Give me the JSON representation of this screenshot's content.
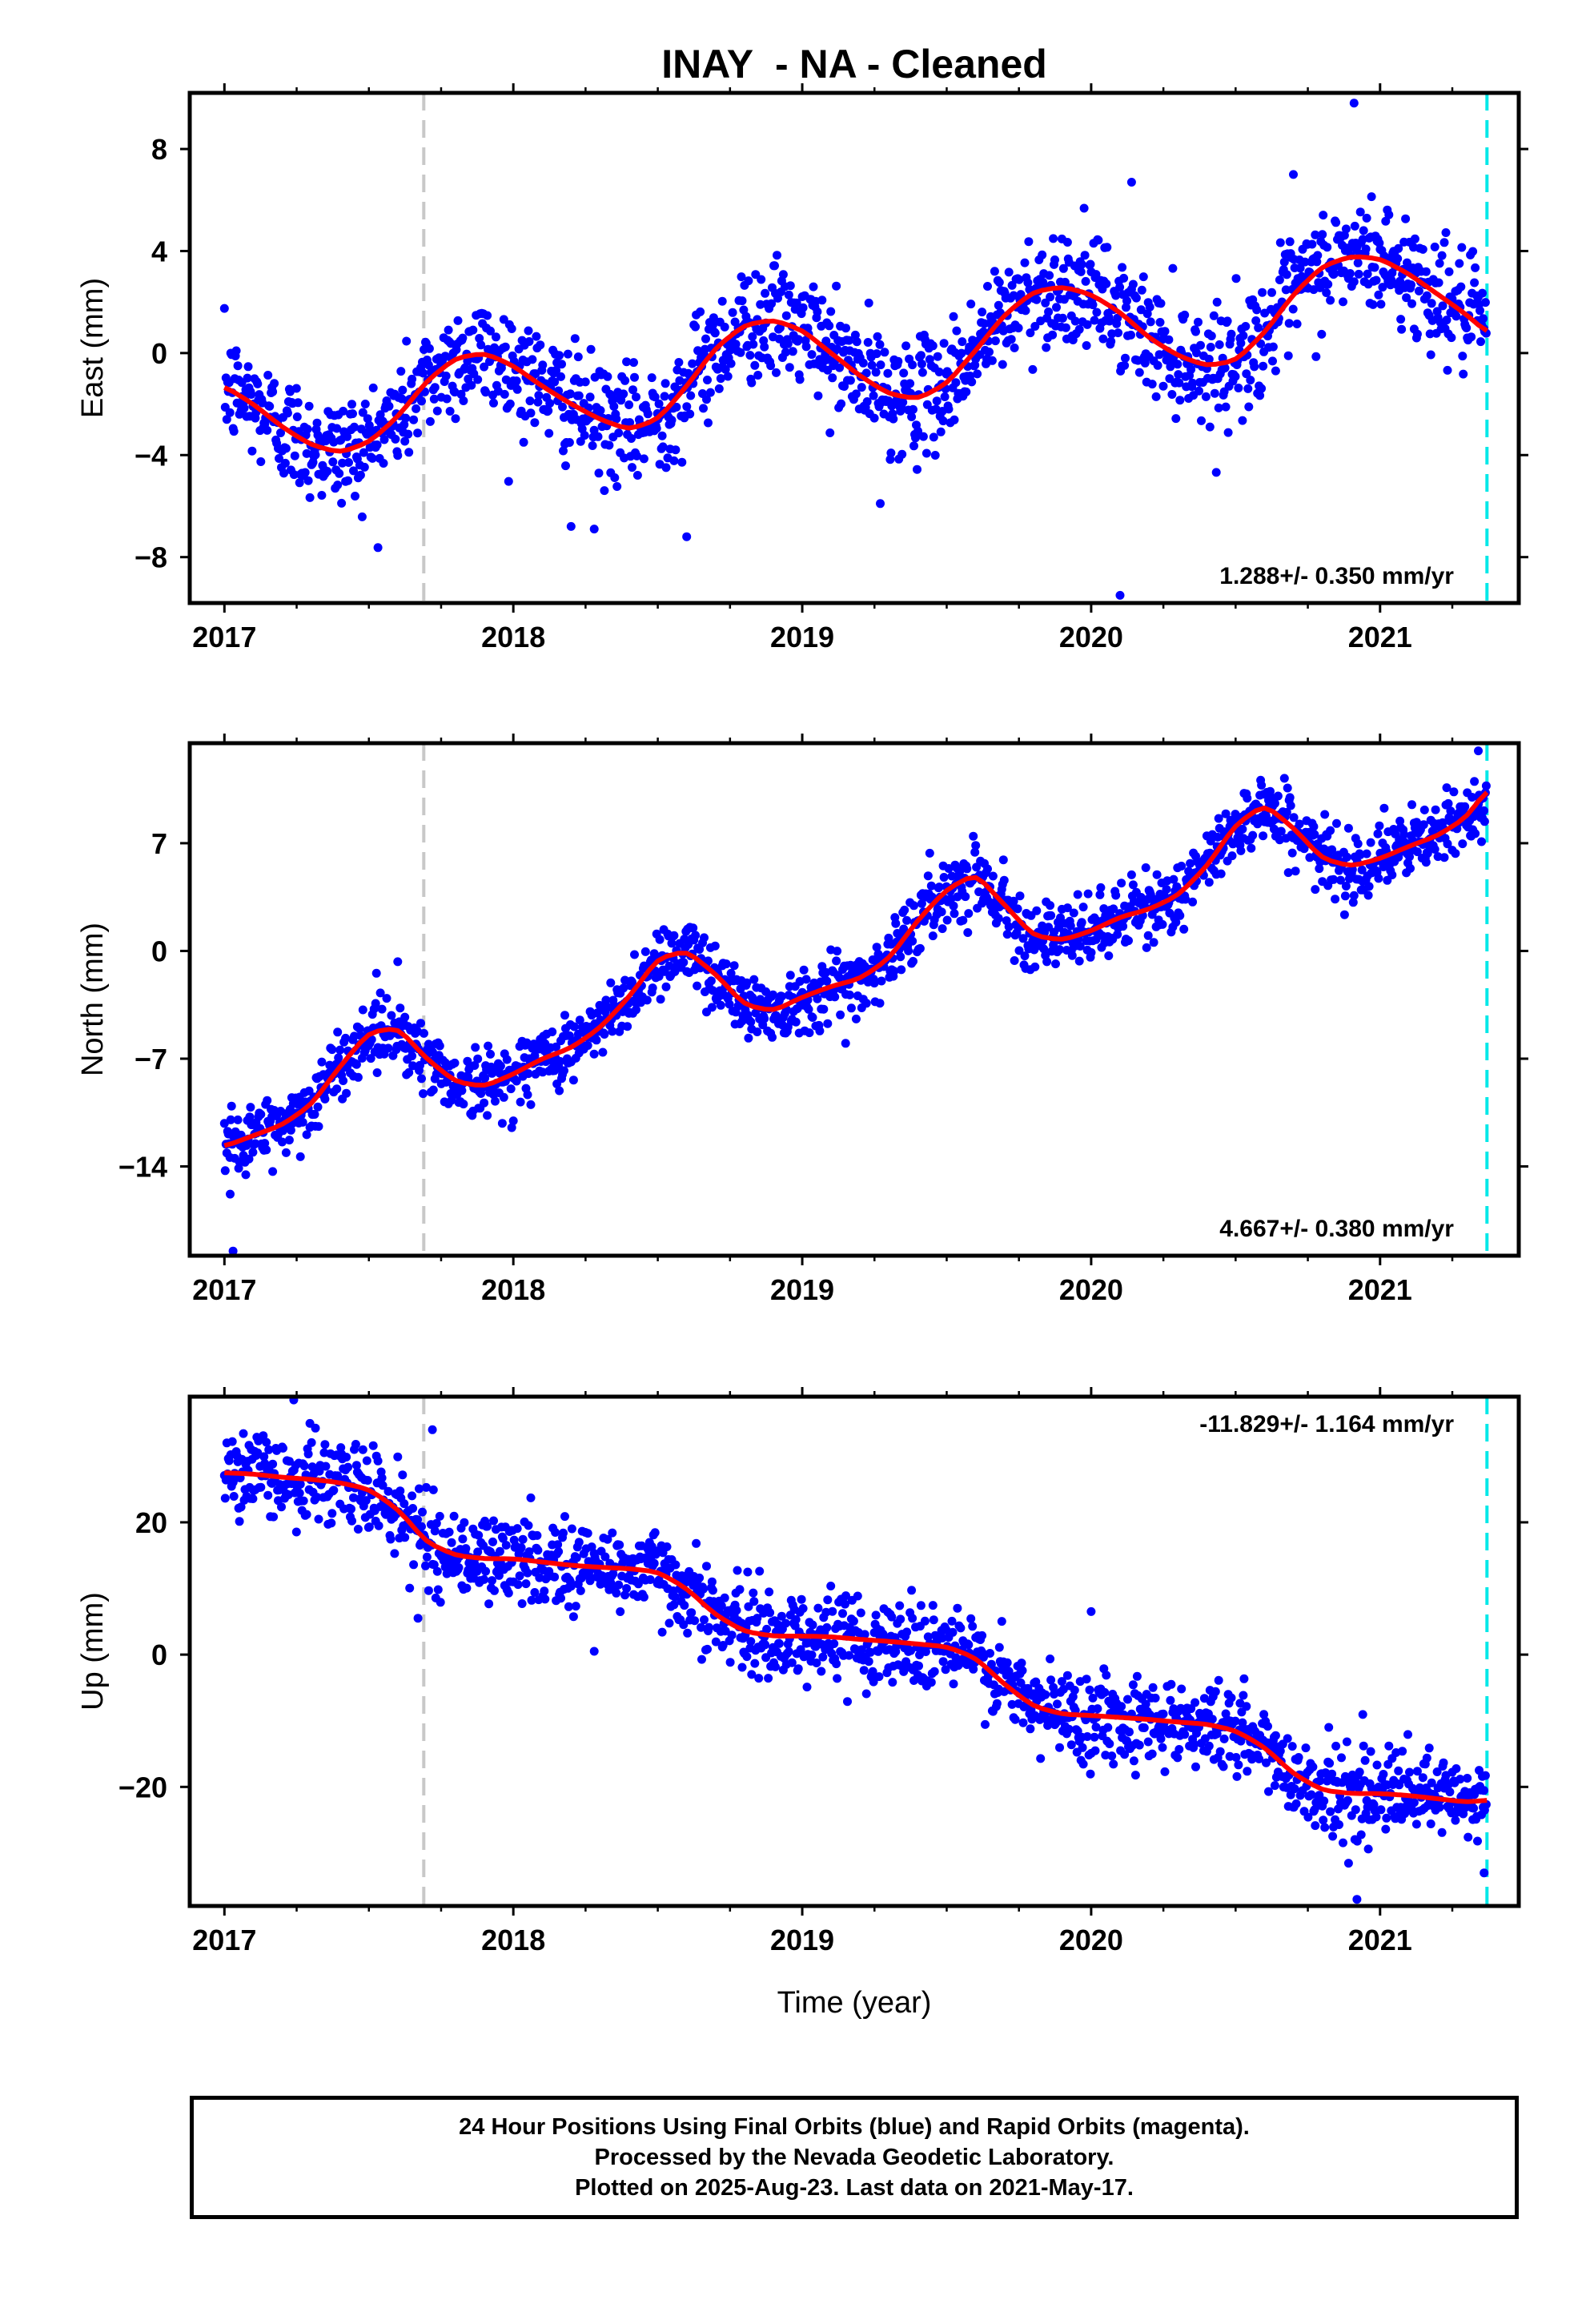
{
  "footer": {
    "line1": "24 Hour Positions Using Final Orbits (blue) and Rapid Orbits (magenta).",
    "line2": "Processed by the Nevada Geodetic Laboratory.",
    "line3": "Plotted on 2025-Aug-23. Last data on 2021-May-17."
  },
  "colors": {
    "points": "#0000ff",
    "fit": "#ff0000",
    "antenna_change_line": "#c8c8c8",
    "last_data_line": "#00e8e8"
  },
  "chart_data": [
    {
      "type": "scatter",
      "title": "INAY  - NA - Cleaned",
      "xlabel": "",
      "ylabel": "East (mm)",
      "xlim": [
        2016.88,
        2021.48
      ],
      "ylim": [
        -9.8,
        10.2
      ],
      "xticks": [
        2017,
        2018,
        2019,
        2020,
        2021
      ],
      "yticks": [
        8,
        4,
        0,
        -4,
        -8
      ],
      "rate_label": "1.288+/- 0.350 mm/yr",
      "rate_position": "bottom-right",
      "vertical_lines": [
        {
          "x": 2017.69,
          "style": "dashed",
          "color": "gray"
        },
        {
          "x": 2021.37,
          "style": "dashed",
          "color": "cyan"
        }
      ],
      "fit_curve": {
        "x": [
          2017.0,
          2017.1,
          2017.2,
          2017.3,
          2017.4,
          2017.5,
          2017.6,
          2017.7,
          2017.8,
          2017.9,
          2018.0,
          2018.1,
          2018.2,
          2018.3,
          2018.4,
          2018.5,
          2018.6,
          2018.7,
          2018.8,
          2018.9,
          2019.0,
          2019.1,
          2019.2,
          2019.3,
          2019.4,
          2019.5,
          2019.6,
          2019.7,
          2019.8,
          2019.9,
          2020.0,
          2020.1,
          2020.2,
          2020.3,
          2020.4,
          2020.5,
          2020.6,
          2020.7,
          2020.8,
          2020.9,
          2021.0,
          2021.1,
          2021.2,
          2021.3,
          2021.37
        ],
        "y": [
          -1.3,
          -2.0,
          -2.9,
          -3.6,
          -3.9,
          -3.5,
          -2.5,
          -1.1,
          -0.2,
          0.0,
          -0.5,
          -1.3,
          -2.0,
          -2.6,
          -3.0,
          -2.6,
          -1.3,
          0.2,
          1.1,
          1.3,
          0.9,
          0.0,
          -0.9,
          -1.6,
          -1.8,
          -1.2,
          0.1,
          1.5,
          2.4,
          2.6,
          2.3,
          1.6,
          0.6,
          -0.1,
          -0.5,
          -0.3,
          0.8,
          2.3,
          3.4,
          3.8,
          3.7,
          3.1,
          2.3,
          1.5,
          0.8
        ]
      },
      "points_summary": {
        "x_start": 2017.0,
        "x_end": 2021.37,
        "spacing_years": 0.00274,
        "scatter_sd_mm": 1.1,
        "outliers": [
          {
            "x": 2020.91,
            "y": 9.8
          },
          {
            "x": 2020.1,
            "y": -9.5
          },
          {
            "x": 2018.6,
            "y": -7.2
          },
          {
            "x": 2018.2,
            "y": -6.8
          },
          {
            "x": 2018.28,
            "y": -6.9
          },
          {
            "x": 2019.27,
            "y": -5.9
          },
          {
            "x": 2020.14,
            "y": 6.7
          },
          {
            "x": 2020.7,
            "y": 7.0
          }
        ]
      }
    },
    {
      "type": "scatter",
      "title": "",
      "xlabel": "",
      "ylabel": "North (mm)",
      "xlim": [
        2016.88,
        2021.48
      ],
      "ylim": [
        -19.8,
        13.5
      ],
      "xticks": [
        2017,
        2018,
        2019,
        2020,
        2021
      ],
      "yticks": [
        7,
        0,
        -7,
        -14
      ],
      "rate_label": "4.667+/- 0.380 mm/yr",
      "rate_position": "bottom-right",
      "vertical_lines": [
        {
          "x": 2017.69,
          "style": "dashed",
          "color": "gray"
        },
        {
          "x": 2021.37,
          "style": "dashed",
          "color": "cyan"
        }
      ],
      "fit_curve": {
        "x": [
          2017.0,
          2017.1,
          2017.2,
          2017.3,
          2017.4,
          2017.5,
          2017.6,
          2017.7,
          2017.8,
          2017.9,
          2018.0,
          2018.1,
          2018.2,
          2018.3,
          2018.4,
          2018.5,
          2018.6,
          2018.7,
          2018.8,
          2018.9,
          2019.0,
          2019.1,
          2019.2,
          2019.3,
          2019.4,
          2019.5,
          2019.6,
          2019.7,
          2019.8,
          2019.9,
          2020.0,
          2020.1,
          2020.2,
          2020.3,
          2020.4,
          2020.5,
          2020.6,
          2020.7,
          2020.8,
          2020.9,
          2021.0,
          2021.1,
          2021.2,
          2021.3,
          2021.37
        ],
        "y": [
          -12.7,
          -12.0,
          -11.3,
          -10.0,
          -7.5,
          -5.3,
          -5.0,
          -7.0,
          -8.5,
          -8.8,
          -8.0,
          -7.0,
          -6.3,
          -5.0,
          -3.0,
          -0.5,
          0.0,
          -1.5,
          -3.5,
          -3.9,
          -3.0,
          -2.3,
          -1.8,
          -0.5,
          2.0,
          4.0,
          5.0,
          3.0,
          1.0,
          0.7,
          1.3,
          2.2,
          2.7,
          3.6,
          5.5,
          8.2,
          9.5,
          8.0,
          6.0,
          5.5,
          6.0,
          6.8,
          7.5,
          8.7,
          10.5
        ]
      },
      "points_summary": {
        "x_start": 2017.0,
        "x_end": 2021.37,
        "spacing_years": 0.00274,
        "scatter_sd_mm": 1.1,
        "outliers": [
          {
            "x": 2017.03,
            "y": -19.5
          },
          {
            "x": 2017.02,
            "y": -15.8
          },
          {
            "x": 2019.15,
            "y": -6.0
          },
          {
            "x": 2021.34,
            "y": 13.0
          },
          {
            "x": 2017.6,
            "y": -0.7
          }
        ]
      }
    },
    {
      "type": "scatter",
      "title": "",
      "xlabel": "Time (year)",
      "ylabel": "Up (mm)",
      "xlim": [
        2016.88,
        2021.48
      ],
      "ylim": [
        -38,
        39
      ],
      "xticks": [
        2017,
        2018,
        2019,
        2020,
        2021
      ],
      "yticks": [
        20,
        0,
        -20
      ],
      "rate_label": "-11.829+/- 1.164 mm/yr",
      "rate_position": "top-right",
      "vertical_lines": [
        {
          "x": 2017.69,
          "style": "dashed",
          "color": "gray"
        },
        {
          "x": 2021.37,
          "style": "dashed",
          "color": "cyan"
        }
      ],
      "fit_curve": {
        "x": [
          2017.0,
          2017.1,
          2017.2,
          2017.3,
          2017.4,
          2017.5,
          2017.6,
          2017.7,
          2017.8,
          2017.9,
          2018.0,
          2018.1,
          2018.2,
          2018.3,
          2018.4,
          2018.5,
          2018.6,
          2018.7,
          2018.8,
          2018.9,
          2019.0,
          2019.1,
          2019.2,
          2019.3,
          2019.4,
          2019.5,
          2019.6,
          2019.7,
          2019.8,
          2019.9,
          2020.0,
          2020.1,
          2020.2,
          2020.3,
          2020.4,
          2020.5,
          2020.6,
          2020.7,
          2020.8,
          2020.9,
          2021.0,
          2021.1,
          2021.2,
          2021.3,
          2021.37
        ],
        "y": [
          27.5,
          27.3,
          26.8,
          26.5,
          26.0,
          25.0,
          22.0,
          17.0,
          15.0,
          14.5,
          14.5,
          14.0,
          13.5,
          13.2,
          13.0,
          12.5,
          10.0,
          6.0,
          3.5,
          2.8,
          2.8,
          2.7,
          2.3,
          2.0,
          1.6,
          1.2,
          -0.5,
          -4.5,
          -7.8,
          -9.0,
          -9.2,
          -9.5,
          -9.8,
          -10.2,
          -10.5,
          -11.5,
          -14.0,
          -18.0,
          -20.5,
          -21.0,
          -21.0,
          -21.3,
          -21.8,
          -22.3,
          -22.0
        ]
      },
      "points_summary": {
        "x_start": 2017.0,
        "x_end": 2021.37,
        "spacing_years": 0.00274,
        "scatter_sd_mm": 3.3,
        "outliers": [
          {
            "x": 2017.24,
            "y": 38.5
          },
          {
            "x": 2017.72,
            "y": 34.0
          },
          {
            "x": 2017.67,
            "y": 5.5
          },
          {
            "x": 2020.92,
            "y": -37.0
          },
          {
            "x": 2021.36,
            "y": -33.0
          },
          {
            "x": 2020.0,
            "y": 6.5
          },
          {
            "x": 2018.28,
            "y": 0.5
          }
        ]
      }
    }
  ]
}
